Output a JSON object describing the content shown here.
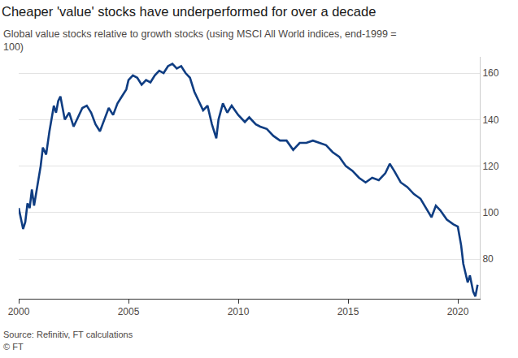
{
  "chart_data": {
    "type": "line",
    "title": "Cheaper 'value' stocks have underperformed for over a decade",
    "subtitle": "Global value stocks relative to growth stocks (using MSCI All World indices, end-1999 = 100)",
    "annotations": [
      "Source: Refinitiv, FT calculations",
      "© FT"
    ],
    "color": "#0f3d82",
    "grid": true,
    "x": [
      2000.0,
      2000.1,
      2000.2,
      2000.3,
      2000.4,
      2000.5,
      2000.6,
      2000.7,
      2000.85,
      2001.0,
      2001.1,
      2001.25,
      2001.4,
      2001.5,
      2001.6,
      2001.7,
      2001.8,
      2001.9,
      2002.0,
      2002.1,
      2002.3,
      2002.5,
      2002.7,
      2002.9,
      2003.1,
      2003.3,
      2003.5,
      2003.7,
      2003.9,
      2004.1,
      2004.3,
      2004.5,
      2004.7,
      2004.9,
      2005.0,
      2005.2,
      2005.4,
      2005.6,
      2005.8,
      2006.0,
      2006.2,
      2006.4,
      2006.6,
      2006.8,
      2007.0,
      2007.2,
      2007.4,
      2007.6,
      2007.8,
      2008.0,
      2008.2,
      2008.4,
      2008.6,
      2008.8,
      2009.0,
      2009.1,
      2009.3,
      2009.5,
      2009.7,
      2010.0,
      2010.3,
      2010.5,
      2010.8,
      2011.0,
      2011.3,
      2011.6,
      2011.9,
      2012.2,
      2012.5,
      2012.8,
      2013.1,
      2013.4,
      2013.7,
      2014.0,
      2014.3,
      2014.6,
      2014.9,
      2015.2,
      2015.5,
      2015.8,
      2016.1,
      2016.4,
      2016.7,
      2016.9,
      2017.1,
      2017.4,
      2017.7,
      2018.0,
      2018.3,
      2018.6,
      2018.8,
      2019.0,
      2019.2,
      2019.5,
      2019.8,
      2020.0,
      2020.15,
      2020.25,
      2020.35,
      2020.45,
      2020.55,
      2020.7,
      2020.8,
      2020.9
    ],
    "values": [
      102,
      97,
      93,
      96,
      104,
      102,
      110,
      103,
      112,
      120,
      128,
      125,
      135,
      140,
      146,
      143,
      148,
      150,
      145,
      140,
      143,
      137,
      141,
      145,
      146,
      143,
      138,
      135,
      140,
      145,
      142,
      147,
      150,
      153,
      157,
      159,
      158,
      155,
      157,
      156,
      159,
      161,
      160,
      163,
      164,
      162,
      163,
      160,
      158,
      152,
      148,
      144,
      146,
      138,
      132,
      140,
      147,
      143,
      146,
      142,
      139,
      141,
      138,
      137,
      136,
      133,
      131,
      131,
      127,
      130,
      130,
      131,
      130,
      129,
      126,
      124,
      120,
      118,
      115,
      113,
      115,
      114,
      117,
      121,
      118,
      113,
      111,
      108,
      106,
      101,
      98,
      103,
      101,
      97,
      95,
      94,
      86,
      78,
      74,
      70,
      73,
      66,
      64,
      69
    ],
    "xlim": [
      2000,
      2021
    ],
    "xticks": [
      2000,
      2005,
      2010,
      2015,
      2020
    ],
    "ylim": [
      63,
      167
    ],
    "yticks": [
      80,
      100,
      120,
      140,
      160
    ]
  }
}
